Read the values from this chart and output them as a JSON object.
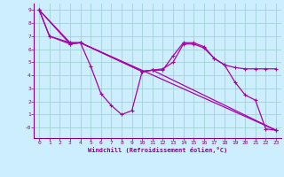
{
  "background_color": "#cceeff",
  "grid_color": "#99cccc",
  "line_color": "#aa00aa",
  "spine_color": "#880088",
  "tick_color": "#880088",
  "xlabel": "Windchill (Refroidissement éolien,°C)",
  "xlim": [
    -0.5,
    23.5
  ],
  "ylim": [
    -0.8,
    9.5
  ],
  "ytick_values": [
    0,
    1,
    2,
    3,
    4,
    5,
    6,
    7,
    8,
    9
  ],
  "ytick_labels": [
    "-0",
    "1",
    "2",
    "3",
    "4",
    "5",
    "6",
    "7",
    "8",
    "9"
  ],
  "xtick_values": [
    0,
    1,
    2,
    3,
    4,
    5,
    6,
    7,
    8,
    9,
    10,
    11,
    12,
    13,
    14,
    15,
    16,
    17,
    18,
    19,
    20,
    21,
    22,
    23
  ],
  "series": [
    {
      "x": [
        0,
        1,
        3,
        4,
        5,
        6,
        7,
        8,
        9,
        10,
        11,
        12,
        13,
        14,
        15,
        16,
        17,
        18,
        19,
        20,
        21,
        22,
        23
      ],
      "y": [
        9.0,
        7.0,
        6.5,
        6.5,
        4.7,
        2.6,
        1.7,
        1.0,
        1.3,
        4.3,
        4.4,
        4.4,
        5.5,
        6.5,
        6.5,
        6.2,
        5.3,
        4.8,
        3.5,
        2.5,
        2.1,
        -0.1,
        -0.2
      ]
    },
    {
      "x": [
        0,
        1,
        3,
        4,
        10,
        11,
        12,
        13,
        14,
        15,
        16,
        17,
        18,
        19,
        20,
        21,
        22,
        23
      ],
      "y": [
        9.0,
        7.0,
        6.4,
        6.5,
        4.3,
        4.4,
        4.5,
        5.0,
        6.4,
        6.4,
        6.1,
        5.3,
        4.8,
        4.6,
        4.5,
        4.5,
        4.5,
        4.5
      ]
    },
    {
      "x": [
        0,
        3,
        4,
        23
      ],
      "y": [
        9.0,
        6.5,
        6.5,
        -0.2
      ]
    },
    {
      "x": [
        0,
        3,
        4,
        10,
        11,
        23
      ],
      "y": [
        9.0,
        6.4,
        6.5,
        4.3,
        4.4,
        -0.2
      ]
    }
  ]
}
